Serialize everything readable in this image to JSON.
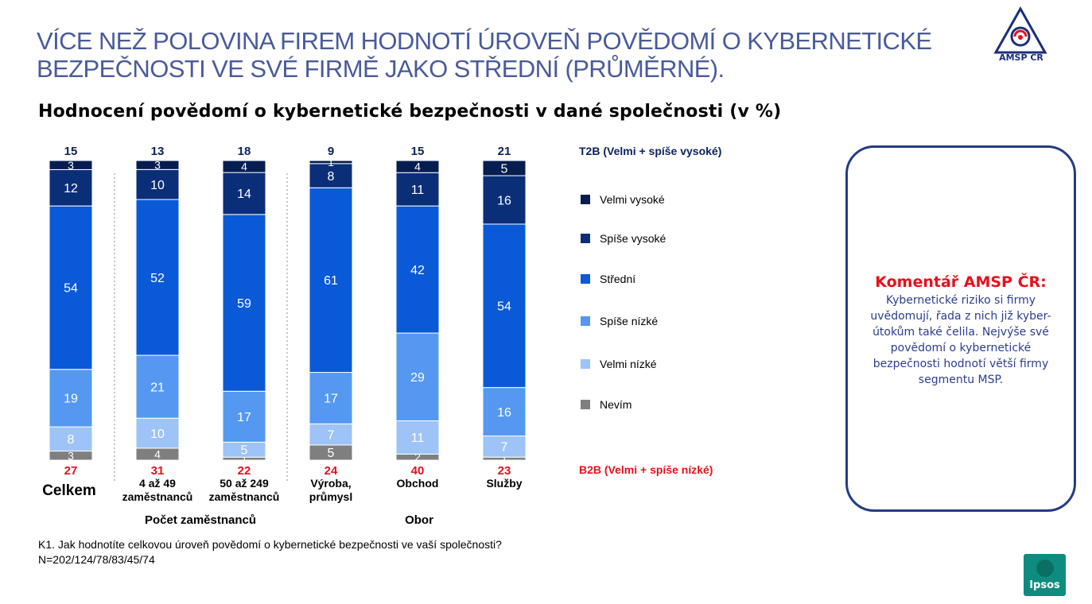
{
  "header": {
    "title_line1": "VÍCE NEŽ POLOVINA FIREM HODNOTÍ ÚROVEŇ POVĚDOMÍ O KYBERNETICKÉ",
    "title_line2": "BEZPEČNOSTI VE SVÉ FIRMĚ JAKO STŘEDNÍ (PRŮMĚRNÉ).",
    "logo_text": "AMSP ČR"
  },
  "chart_data": {
    "type": "bar",
    "stacked": true,
    "orientation": "vertical",
    "title": "Hodnocení povědomí o kybernetické bezpečnosti v dané společnosti (v %)",
    "categories": [
      "Celkem",
      "4 až 49 zaměstnanců",
      "50 až 249 zaměstnanců",
      "Výroba, průmysl",
      "Obchod",
      "Služby"
    ],
    "category_lines": [
      [
        "Celkem"
      ],
      [
        "4 až 49",
        "zaměstnanců"
      ],
      [
        "50 až 249",
        "zaměstnanců"
      ],
      [
        "Výroba,",
        "průmysl"
      ],
      [
        "Obchod"
      ],
      [
        "Služby"
      ]
    ],
    "groups": [
      {
        "label": "Počet zaměstnanců",
        "categories": [
          1,
          2
        ]
      },
      {
        "label": "Obor",
        "categories": [
          3,
          4,
          5
        ]
      }
    ],
    "series": [
      {
        "name": "Nevím",
        "color": "#7f7f7f",
        "values": [
          3,
          4,
          1,
          5,
          2,
          1
        ]
      },
      {
        "name": "Velmi nízké",
        "color": "#9dc3f7",
        "values": [
          8,
          10,
          5,
          7,
          11,
          7
        ]
      },
      {
        "name": "Spíše nízké",
        "color": "#5598f2",
        "values": [
          19,
          21,
          17,
          17,
          29,
          16
        ]
      },
      {
        "name": "Střední",
        "color": "#0a5ad8",
        "values": [
          54,
          52,
          59,
          61,
          42,
          54
        ]
      },
      {
        "name": "Spíše vysoké",
        "color": "#0b2e78",
        "values": [
          12,
          10,
          14,
          8,
          11,
          16
        ]
      },
      {
        "name": "Velmi vysoké",
        "color": "#051d4f",
        "values": [
          3,
          3,
          4,
          1,
          4,
          5
        ]
      }
    ],
    "legend_order": [
      "Velmi vysoké",
      "Spíše vysoké",
      "Střední",
      "Spíše nízké",
      "Velmi nízké",
      "Nevím"
    ],
    "t2b": {
      "label": "T2B (Velmi + spíše vysoké)",
      "values": [
        15,
        13,
        18,
        9,
        15,
        21
      ],
      "color": "#0b2360"
    },
    "b2b": {
      "label": "B2B (Velmi + spíše nízké)",
      "values": [
        27,
        31,
        22,
        24,
        40,
        23
      ],
      "color": "#e8101b"
    },
    "ylim": [
      0,
      100
    ],
    "legend_position": "right"
  },
  "comment": {
    "title": "Komentář AMSP ČR:",
    "text": "Kybernetické riziko si firmy uvědomují, řada z nich již kyber-útokům také čelila. Nejvýše své povědomí o kybernetické bezpečnosti hodnotí větší firmy segmentu MSP."
  },
  "footnote": {
    "question": "K1. Jak hodnotíte celkovou úroveň povědomí o kybernetické bezpečnosti ve vaší společnosti?",
    "sample": "N=202/124/78/83/45/74"
  },
  "brand": {
    "ipsos": "Ipsos"
  }
}
